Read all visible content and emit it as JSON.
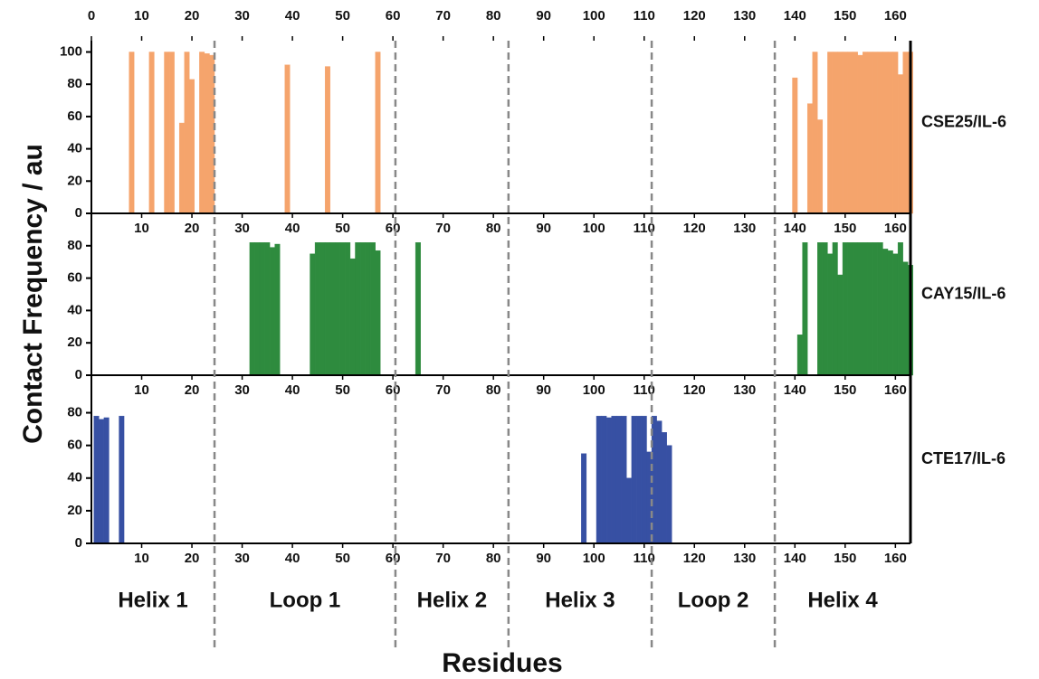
{
  "figure": {
    "ylabel": "Contact Frequency / au",
    "xlabel": "Residues",
    "boundaries": [
      24.5,
      60.5,
      83,
      111.5,
      136
    ],
    "regions": [
      {
        "label": "Helix 1",
        "color": "#2bbcc0"
      },
      {
        "label": "Loop 1",
        "color": "#3cb54a"
      },
      {
        "label": "Helix 2",
        "color": "#e8262a"
      },
      {
        "label": "Helix 3",
        "color": "#4a54a4"
      },
      {
        "label": "Loop 2",
        "color": "#8b5e3c"
      },
      {
        "label": "Helix 4",
        "color": "#a03ca0"
      }
    ]
  },
  "chart_data": [
    {
      "type": "bar",
      "label": "CSE25/IL-6",
      "color": "#f5a46c",
      "x": [
        8,
        12,
        15,
        16,
        18,
        19,
        20,
        22,
        23,
        24,
        39,
        47,
        57,
        140,
        143,
        144,
        145,
        147,
        148,
        149,
        150,
        151,
        152,
        153,
        154,
        155,
        156,
        157,
        158,
        159,
        160,
        161,
        162,
        163
      ],
      "values": [
        100,
        100,
        100,
        100,
        56,
        100,
        83,
        100,
        99,
        98,
        92,
        91,
        100,
        84,
        68,
        100,
        58,
        100,
        100,
        100,
        100,
        100,
        100,
        98,
        100,
        100,
        100,
        100,
        100,
        100,
        100,
        86,
        100,
        100
      ],
      "xlim": [
        0,
        163
      ],
      "ylim": [
        0,
        107
      ],
      "x2ticks": [
        0,
        10,
        20,
        30,
        40,
        50,
        60,
        70,
        80,
        90,
        100,
        110,
        120,
        130,
        140,
        150,
        160
      ],
      "xticks": [
        10,
        20,
        30,
        40,
        50,
        60,
        70,
        80,
        90,
        100,
        110,
        120,
        130,
        140,
        150,
        160
      ],
      "yticks": [
        0,
        20,
        40,
        60,
        80,
        100
      ]
    },
    {
      "type": "bar",
      "label": "CAY15/IL-6",
      "color": "#2e8b3e",
      "x": [
        32,
        33,
        34,
        35,
        36,
        37,
        44,
        45,
        46,
        47,
        48,
        49,
        50,
        51,
        52,
        53,
        54,
        55,
        56,
        57,
        65,
        141,
        142,
        145,
        146,
        147,
        148,
        149,
        150,
        151,
        152,
        153,
        154,
        155,
        156,
        157,
        158,
        159,
        160,
        161,
        162,
        163
      ],
      "values": [
        82,
        82,
        82,
        82,
        79,
        81,
        75,
        82,
        82,
        82,
        82,
        82,
        82,
        82,
        72,
        82,
        82,
        82,
        82,
        77,
        82,
        25,
        82,
        82,
        82,
        75,
        82,
        62,
        82,
        82,
        82,
        82,
        82,
        82,
        82,
        82,
        78,
        77,
        75,
        82,
        70,
        68
      ],
      "xlim": [
        0,
        163
      ],
      "ylim": [
        0,
        100
      ],
      "xticks": [
        10,
        20,
        30,
        40,
        50,
        60,
        70,
        80,
        90,
        100,
        110,
        120,
        130,
        140,
        150,
        160
      ],
      "yticks": [
        0,
        20,
        40,
        60,
        80
      ]
    },
    {
      "type": "bar",
      "label": "CTE17/IL-6",
      "color": "#3750a3",
      "x": [
        1,
        2,
        3,
        6,
        98,
        101,
        102,
        103,
        104,
        105,
        106,
        107,
        108,
        109,
        110,
        111,
        112,
        113,
        114,
        115
      ],
      "values": [
        78,
        76,
        77,
        78,
        55,
        78,
        78,
        77,
        78,
        78,
        78,
        40,
        78,
        78,
        78,
        56,
        78,
        75,
        68,
        60
      ],
      "xlim": [
        0,
        163
      ],
      "ylim": [
        0,
        103
      ],
      "xticks": [
        10,
        20,
        30,
        40,
        50,
        60,
        70,
        80,
        90,
        100,
        110,
        120,
        130,
        140,
        150,
        160
      ],
      "yticks": [
        0,
        20,
        40,
        60,
        80
      ]
    }
  ]
}
